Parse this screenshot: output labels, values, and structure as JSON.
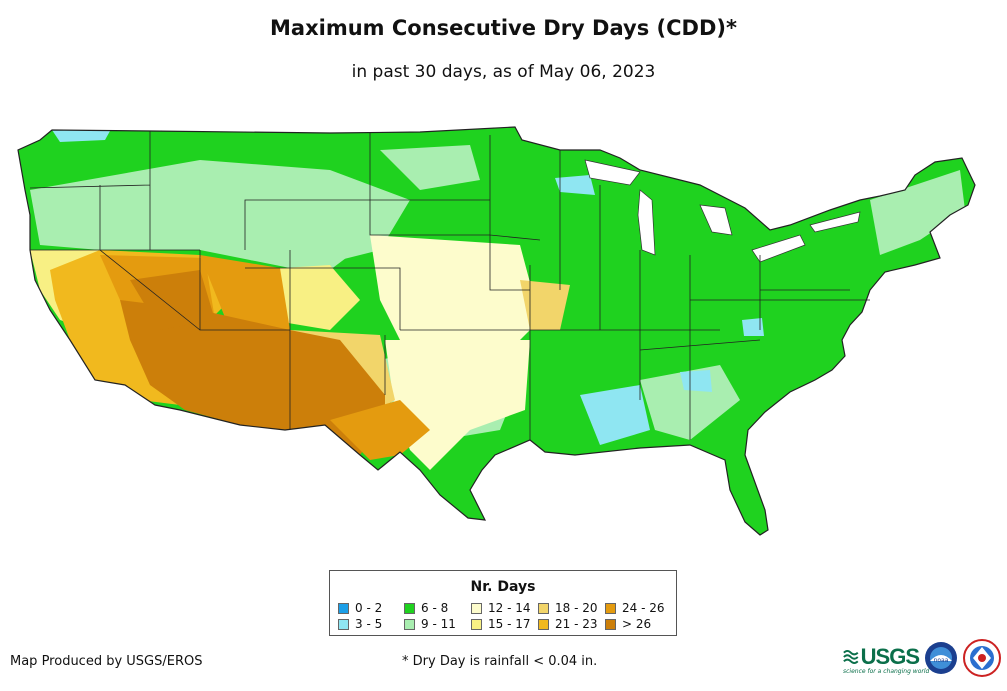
{
  "header": {
    "title": "Maximum Consecutive Dry Days (CDD)*",
    "subtitle": "in past 30 days, as of May 06, 2023"
  },
  "legend": {
    "title": "Nr. Days",
    "items": [
      {
        "label": "0 - 2",
        "color": "#1c9fe8"
      },
      {
        "label": "3 - 5",
        "color": "#8fe6f2"
      },
      {
        "label": "6 - 8",
        "color": "#1fd21f"
      },
      {
        "label": "9 - 11",
        "color": "#a9eeb0"
      },
      {
        "label": "12 - 14",
        "color": "#fdfccc"
      },
      {
        "label": "15 - 17",
        "color": "#f8f084"
      },
      {
        "label": "18 - 20",
        "color": "#f2d56a"
      },
      {
        "label": "21 - 23",
        "color": "#f1b91e"
      },
      {
        "label": "24 - 26",
        "color": "#e49b0f"
      },
      {
        "label": "> 26",
        "color": "#cc7f0a"
      }
    ]
  },
  "footer": {
    "credit": "Map Produced by USGS/EROS",
    "note": "* Dry Day is rainfall < 0.04 in."
  },
  "logos": {
    "usgs_text": "USGS",
    "usgs_tagline": "science for a changing world",
    "noaa_text": "noaa"
  },
  "map": {
    "region": "Contiguous United States",
    "dominant_categories": {
      "southwest": "> 26",
      "california_nevada": "21 - 23",
      "plains": "12 - 14",
      "east_midwest": "6 - 8",
      "mountain_west": "9 - 11"
    }
  }
}
